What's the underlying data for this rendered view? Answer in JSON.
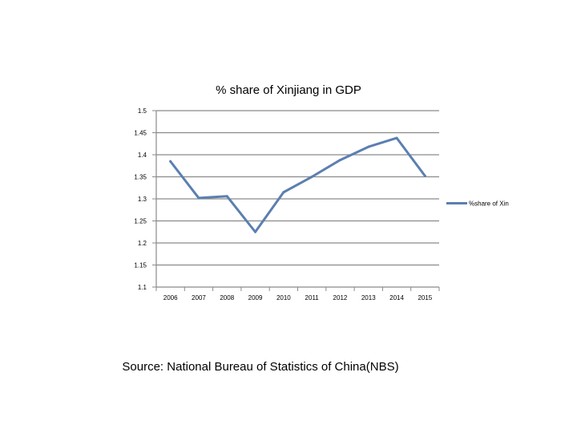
{
  "chart_data": {
    "type": "line",
    "title": "% share of Xinjiang in GDP",
    "categories": [
      "2006",
      "2007",
      "2008",
      "2009",
      "2010",
      "2011",
      "2012",
      "2013",
      "2014",
      "2015"
    ],
    "series": [
      {
        "name": "%share of Xin",
        "values": [
          1.385,
          1.302,
          1.306,
          1.225,
          1.315,
          1.35,
          1.388,
          1.418,
          1.438,
          1.352
        ]
      }
    ],
    "ylim": [
      1.1,
      1.5
    ],
    "yticks": [
      "1.1",
      "1.15",
      "1.2",
      "1.25",
      "1.3",
      "1.35",
      "1.4",
      "1.45",
      "1.5"
    ],
    "ytick_values": [
      1.1,
      1.15,
      1.2,
      1.25,
      1.3,
      1.35,
      1.4,
      1.45,
      1.5
    ],
    "grid": true,
    "legend_position": "right",
    "line_color": "#5b7fb0",
    "grid_color": "#8a8a8a"
  },
  "source": "Source: National Bureau of Statistics of China(NBS)"
}
